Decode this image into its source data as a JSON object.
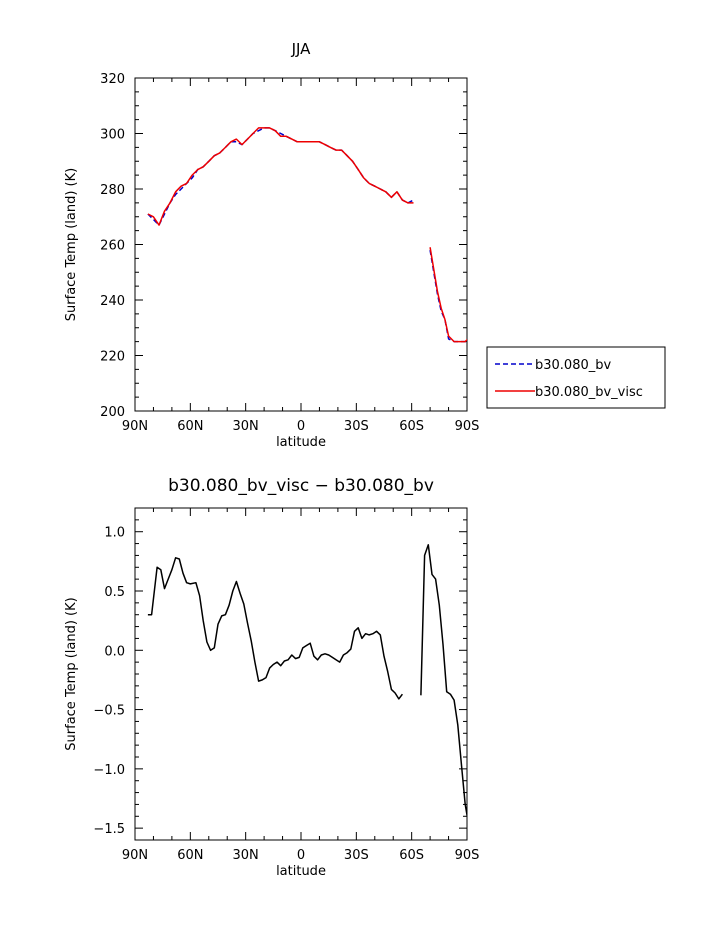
{
  "chart_data": [
    {
      "type": "line",
      "title": "JJA",
      "xlabel": "latitude",
      "ylabel": "Surface Temp (land) (K)",
      "xlim": [
        90,
        -90
      ],
      "ylim": [
        200,
        320
      ],
      "xticks": [
        90,
        60,
        30,
        0,
        -30,
        -60,
        -90
      ],
      "xtick_labels": [
        "90N",
        "60N",
        "30N",
        "0",
        "30S",
        "60S",
        "90S"
      ],
      "yticks": [
        200,
        220,
        240,
        260,
        280,
        300,
        320
      ],
      "ytick_labels": [
        "200",
        "220",
        "240",
        "260",
        "280",
        "300",
        "320"
      ],
      "legend_placement": "right",
      "series": [
        {
          "name": "b30.080_bv",
          "color": "#0000cc",
          "dash": "dashed",
          "segments": [
            [
              [
                83,
                271
              ],
              [
                80,
                269
              ],
              [
                77,
                267
              ],
              [
                74,
                271
              ],
              [
                71,
                275
              ],
              [
                68,
                278
              ],
              [
                65,
                280
              ],
              [
                62,
                282
              ],
              [
                59,
                284
              ],
              [
                56,
                287
              ],
              [
                53,
                288
              ],
              [
                50,
                290
              ],
              [
                47,
                292
              ],
              [
                44,
                293
              ],
              [
                41,
                295
              ],
              [
                38,
                297
              ],
              [
                35,
                297
              ],
              [
                32,
                296
              ],
              [
                29,
                298
              ],
              [
                26,
                300
              ],
              [
                23,
                301
              ],
              [
                20,
                302
              ],
              [
                17,
                302
              ],
              [
                14,
                301
              ],
              [
                11,
                300
              ],
              [
                8,
                299
              ],
              [
                5,
                298
              ],
              [
                2,
                297
              ],
              [
                -1,
                297
              ],
              [
                -4,
                297
              ],
              [
                -7,
                297
              ],
              [
                -10,
                297
              ],
              [
                -13,
                296
              ],
              [
                -16,
                295
              ],
              [
                -19,
                294
              ],
              [
                -22,
                294
              ],
              [
                -25,
                292
              ],
              [
                -28,
                290
              ],
              [
                -31,
                287
              ],
              [
                -34,
                284
              ],
              [
                -37,
                282
              ],
              [
                -40,
                281
              ],
              [
                -43,
                280
              ],
              [
                -46,
                279
              ],
              [
                -49,
                277
              ],
              [
                -52,
                279
              ],
              [
                -55,
                276
              ],
              [
                -58,
                275
              ],
              [
                -61,
                276
              ]
            ],
            [
              [
                -70,
                258
              ],
              [
                -72,
                250
              ],
              [
                -74,
                242
              ],
              [
                -76,
                236
              ],
              [
                -78,
                233
              ],
              [
                -80,
                226
              ],
              [
                -83,
                225
              ],
              [
                -86,
                225
              ],
              [
                -89,
                225
              ],
              [
                -92,
                226
              ],
              [
                -95,
                227
              ],
              [
                -98,
                223
              ],
              [
                -101,
                220
              ],
              [
                -104,
                219
              ]
            ]
          ]
        },
        {
          "name": "b30.080_bv_visc",
          "color": "#ee0000",
          "dash": "solid",
          "segments": [
            [
              [
                83,
                271
              ],
              [
                80,
                270
              ],
              [
                77,
                267
              ],
              [
                74,
                272
              ],
              [
                71,
                275
              ],
              [
                68,
                279
              ],
              [
                65,
                281
              ],
              [
                62,
                282
              ],
              [
                59,
                285
              ],
              [
                56,
                287
              ],
              [
                53,
                288
              ],
              [
                50,
                290
              ],
              [
                47,
                292
              ],
              [
                44,
                293
              ],
              [
                41,
                295
              ],
              [
                38,
                297
              ],
              [
                35,
                298
              ],
              [
                32,
                296
              ],
              [
                29,
                298
              ],
              [
                26,
                300
              ],
              [
                23,
                302
              ],
              [
                20,
                302
              ],
              [
                17,
                302
              ],
              [
                14,
                301
              ],
              [
                11,
                299
              ],
              [
                8,
                299
              ],
              [
                5,
                298
              ],
              [
                2,
                297
              ],
              [
                -1,
                297
              ],
              [
                -4,
                297
              ],
              [
                -7,
                297
              ],
              [
                -10,
                297
              ],
              [
                -13,
                296
              ],
              [
                -16,
                295
              ],
              [
                -19,
                294
              ],
              [
                -22,
                294
              ],
              [
                -25,
                292
              ],
              [
                -28,
                290
              ],
              [
                -31,
                287
              ],
              [
                -34,
                284
              ],
              [
                -37,
                282
              ],
              [
                -40,
                281
              ],
              [
                -43,
                280
              ],
              [
                -46,
                279
              ],
              [
                -49,
                277
              ],
              [
                -52,
                279
              ],
              [
                -55,
                276
              ],
              [
                -58,
                275
              ],
              [
                -61,
                275
              ]
            ],
            [
              [
                -70,
                259
              ],
              [
                -72,
                251
              ],
              [
                -74,
                243
              ],
              [
                -76,
                237
              ],
              [
                -78,
                233
              ],
              [
                -80,
                227
              ],
              [
                -83,
                225
              ],
              [
                -86,
                225
              ],
              [
                -89,
                225
              ],
              [
                -92,
                227
              ],
              [
                -95,
                227
              ],
              [
                -98,
                224
              ],
              [
                -101,
                220
              ],
              [
                -104,
                218
              ]
            ]
          ]
        }
      ]
    },
    {
      "type": "line",
      "title": "b30.080_bv_visc − b30.080_bv",
      "xlabel": "latitude",
      "ylabel": "Surface Temp (land) (K)",
      "xlim": [
        90,
        -90
      ],
      "ylim": [
        -1.6,
        1.2
      ],
      "xticks": [
        90,
        60,
        30,
        0,
        -30,
        -60,
        -90
      ],
      "xtick_labels": [
        "90N",
        "60N",
        "30N",
        "0",
        "30S",
        "60S",
        "90S"
      ],
      "yticks": [
        -1.5,
        -1.0,
        -0.5,
        0.0,
        0.5,
        1.0
      ],
      "ytick_labels": [
        "−1.5",
        "−1.0",
        "−0.5",
        "0.0",
        "0.5",
        "1.0"
      ],
      "series": [
        {
          "color": "#000000",
          "dash": "solid",
          "segments": [
            [
              [
                83,
                0.3
              ],
              [
                81,
                0.3
              ],
              [
                78,
                0.7
              ],
              [
                76,
                0.68
              ],
              [
                74,
                0.52
              ],
              [
                72,
                0.6
              ],
              [
                70,
                0.68
              ],
              [
                68,
                0.78
              ],
              [
                66,
                0.77
              ],
              [
                64,
                0.65
              ],
              [
                62,
                0.57
              ],
              [
                60,
                0.56
              ],
              [
                57,
                0.57
              ],
              [
                55,
                0.46
              ],
              [
                53,
                0.25
              ],
              [
                51,
                0.07
              ],
              [
                49,
                0.0
              ],
              [
                47,
                0.02
              ],
              [
                45,
                0.22
              ],
              [
                43,
                0.29
              ],
              [
                41,
                0.3
              ],
              [
                39,
                0.38
              ],
              [
                37,
                0.5
              ],
              [
                35,
                0.58
              ],
              [
                33,
                0.48
              ],
              [
                31,
                0.39
              ],
              [
                29,
                0.23
              ],
              [
                27,
                0.08
              ],
              [
                25,
                -0.1
              ],
              [
                23,
                -0.26
              ],
              [
                21,
                -0.25
              ],
              [
                19,
                -0.23
              ],
              [
                17,
                -0.15
              ],
              [
                15,
                -0.12
              ],
              [
                13,
                -0.1
              ],
              [
                11,
                -0.13
              ],
              [
                9,
                -0.09
              ],
              [
                7,
                -0.08
              ],
              [
                5,
                -0.04
              ],
              [
                3,
                -0.07
              ],
              [
                1,
                -0.06
              ],
              [
                -1,
                0.02
              ],
              [
                -3,
                0.04
              ],
              [
                -5,
                0.06
              ],
              [
                -7,
                -0.05
              ],
              [
                -9,
                -0.08
              ],
              [
                -11,
                -0.04
              ],
              [
                -13,
                -0.03
              ],
              [
                -15,
                -0.04
              ],
              [
                -17,
                -0.06
              ],
              [
                -19,
                -0.08
              ],
              [
                -21,
                -0.1
              ],
              [
                -23,
                -0.04
              ],
              [
                -25,
                -0.02
              ],
              [
                -27,
                0.01
              ],
              [
                -29,
                0.16
              ],
              [
                -31,
                0.19
              ],
              [
                -33,
                0.1
              ],
              [
                -35,
                0.14
              ],
              [
                -37,
                0.13
              ],
              [
                -39,
                0.14
              ],
              [
                -41,
                0.16
              ],
              [
                -43,
                0.13
              ],
              [
                -45,
                -0.05
              ],
              [
                -47,
                -0.18
              ],
              [
                -49,
                -0.33
              ],
              [
                -51,
                -0.36
              ],
              [
                -53,
                -0.41
              ],
              [
                -55,
                -0.37
              ]
            ],
            [
              [
                -65,
                -0.38
              ],
              [
                -67,
                0.8
              ],
              [
                -69,
                0.89
              ],
              [
                -71,
                0.64
              ],
              [
                -73,
                0.6
              ],
              [
                -75,
                0.38
              ],
              [
                -77,
                0.05
              ],
              [
                -79,
                -0.35
              ],
              [
                -81,
                -0.37
              ],
              [
                -83,
                -0.42
              ],
              [
                -85,
                -0.63
              ],
              [
                -87,
                -0.97
              ],
              [
                -89,
                -1.3
              ],
              [
                -91,
                -1.48
              ]
            ]
          ]
        }
      ]
    }
  ]
}
